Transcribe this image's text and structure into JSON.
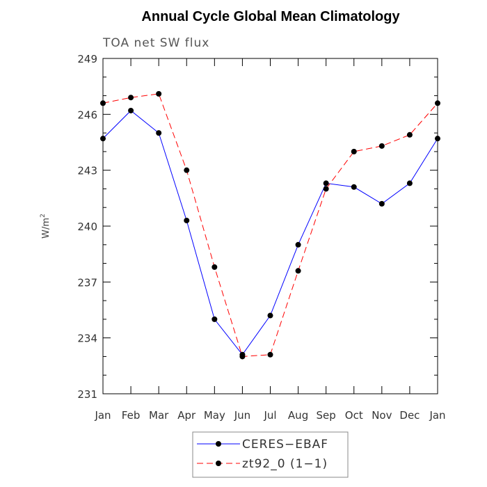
{
  "chart_data": {
    "type": "line",
    "title": "Annual Cycle Global Mean Climatology",
    "subtitle": "TOA net SW flux",
    "ylabel": "W/m",
    "ylabel_sup": "2",
    "xlabel": "",
    "categories": [
      "Jan",
      "Feb",
      "Mar",
      "Apr",
      "May",
      "Jun",
      "Jul",
      "Aug",
      "Sep",
      "Oct",
      "Nov",
      "Dec",
      "Jan"
    ],
    "ylim": [
      231,
      249
    ],
    "yticks": [
      231,
      234,
      237,
      240,
      243,
      246,
      249
    ],
    "grid": false,
    "legend_position": "bottom-center",
    "series": [
      {
        "name": "CERES−EBAF",
        "color": "#0000ff",
        "line_style": "solid",
        "marker": "filled-circle",
        "values": [
          244.7,
          246.2,
          245.0,
          240.3,
          235.0,
          233.1,
          235.2,
          239.0,
          242.3,
          242.1,
          241.2,
          242.3,
          244.7
        ]
      },
      {
        "name": "zt92_0 (1−1)",
        "color": "#ff0000",
        "line_style": "dashed",
        "marker": "filled-circle",
        "values": [
          246.6,
          246.9,
          247.1,
          243.0,
          237.8,
          233.0,
          233.1,
          237.6,
          242.0,
          244.0,
          244.3,
          244.9,
          246.6
        ]
      }
    ]
  }
}
